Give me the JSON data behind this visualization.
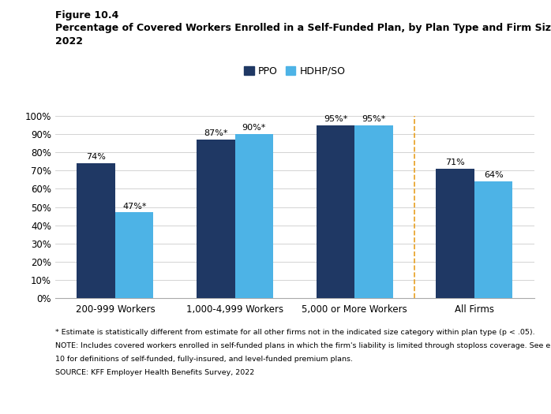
{
  "title_line1": "Figure 10.4",
  "title_line2": "Percentage of Covered Workers Enrolled in a Self-Funded Plan, by Plan Type and Firm Size,",
  "title_line3": "2022",
  "categories": [
    "200-999 Workers",
    "1,000-4,999 Workers",
    "5,000 or More Workers",
    "All Firms"
  ],
  "ppo_values": [
    74,
    87,
    95,
    71
  ],
  "hdhp_values": [
    47,
    90,
    95,
    64
  ],
  "ppo_labels": [
    "74%",
    "87%*",
    "95%*",
    "71%"
  ],
  "hdhp_labels": [
    "47%*",
    "90%*",
    "95%*",
    "64%"
  ],
  "ppo_color": "#1f3864",
  "hdhp_color": "#4db3e6",
  "bar_width": 0.32,
  "ylim": [
    0,
    100
  ],
  "yticks": [
    0,
    10,
    20,
    30,
    40,
    50,
    60,
    70,
    80,
    90,
    100
  ],
  "ytick_labels": [
    "0%",
    "10%",
    "20%",
    "30%",
    "40%",
    "50%",
    "60%",
    "70%",
    "80%",
    "90%",
    "100%"
  ],
  "legend_ppo": "PPO",
  "legend_hdhp": "HDHP/SO",
  "dashed_line_color": "#e8a020",
  "footnote1": "* Estimate is statistically different from estimate for all other firms not in the indicated size category within plan type (p < .05).",
  "footnote2": "NOTE: Includes covered workers enrolled in self-funded plans in which the firm's liability is limited through stoploss coverage. See end of Section",
  "footnote3": "10 for definitions of self-funded, fully-insured, and level-funded premium plans.",
  "footnote4": "SOURCE: KFF Employer Health Benefits Survey, 2022"
}
